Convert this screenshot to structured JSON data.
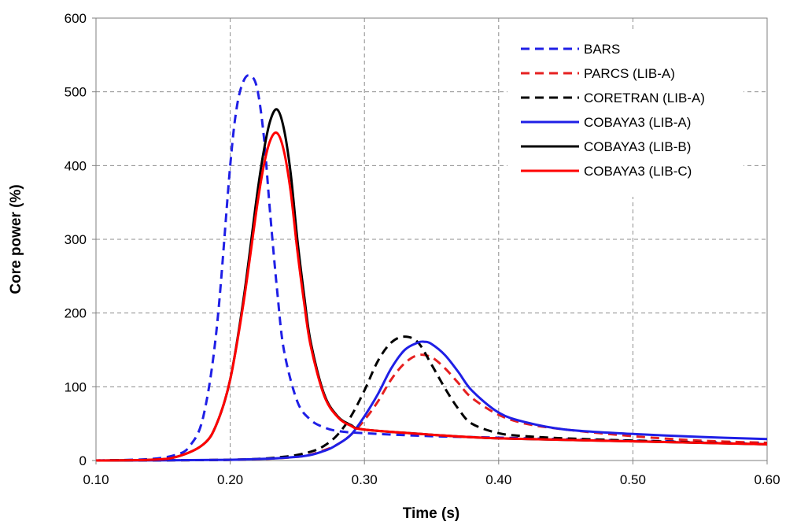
{
  "chart_data": {
    "type": "line",
    "title": "",
    "xlabel": "Time (s)",
    "ylabel": "Core power (%)",
    "xlim": [
      0.1,
      0.6
    ],
    "ylim": [
      0,
      600
    ],
    "xticks": [
      "0.10",
      "0.20",
      "0.30",
      "0.40",
      "0.50",
      "0.60"
    ],
    "yticks": [
      "0",
      "100",
      "200",
      "300",
      "400",
      "500",
      "600"
    ],
    "grid": true,
    "grid_style": "dashed",
    "legend_position": "top-right",
    "series": [
      {
        "name": "BARS",
        "color": "#1f1fe6",
        "dash": "dashed",
        "x": [
          0.1,
          0.14,
          0.16,
          0.17,
          0.18,
          0.19,
          0.2,
          0.205,
          0.21,
          0.215,
          0.22,
          0.225,
          0.23,
          0.235,
          0.24,
          0.25,
          0.26,
          0.27,
          0.28,
          0.3,
          0.35,
          0.4,
          0.5,
          0.6
        ],
        "y": [
          0,
          2,
          8,
          20,
          60,
          180,
          400,
          480,
          515,
          522,
          505,
          440,
          330,
          230,
          150,
          80,
          55,
          45,
          40,
          37,
          33,
          31,
          27,
          24
        ]
      },
      {
        "name": "PARCS (LIB-A)",
        "color": "#e62020",
        "dash": "dashed",
        "x": [
          0.1,
          0.2,
          0.25,
          0.27,
          0.28,
          0.29,
          0.3,
          0.31,
          0.32,
          0.33,
          0.34,
          0.35,
          0.36,
          0.37,
          0.38,
          0.4,
          0.42,
          0.45,
          0.5,
          0.55,
          0.6
        ],
        "y": [
          0,
          1,
          5,
          14,
          22,
          35,
          55,
          80,
          110,
          132,
          143,
          140,
          125,
          105,
          85,
          62,
          50,
          42,
          33,
          27,
          24
        ]
      },
      {
        "name": "CORETRAN (LIB-A)",
        "color": "#000000",
        "dash": "dashed",
        "x": [
          0.1,
          0.2,
          0.24,
          0.26,
          0.27,
          0.28,
          0.29,
          0.3,
          0.31,
          0.32,
          0.33,
          0.34,
          0.35,
          0.36,
          0.37,
          0.38,
          0.4,
          0.42,
          0.45,
          0.5,
          0.6
        ],
        "y": [
          0,
          1,
          5,
          12,
          20,
          35,
          60,
          95,
          135,
          160,
          168,
          160,
          130,
          98,
          70,
          50,
          37,
          33,
          30,
          27,
          22
        ]
      },
      {
        "name": "COBAYA3 (LIB-A)",
        "color": "#1f1fe6",
        "dash": "solid",
        "x": [
          0.1,
          0.2,
          0.25,
          0.27,
          0.28,
          0.29,
          0.3,
          0.31,
          0.32,
          0.33,
          0.34,
          0.345,
          0.35,
          0.36,
          0.37,
          0.38,
          0.4,
          0.42,
          0.45,
          0.5,
          0.55,
          0.6
        ],
        "y": [
          0,
          1,
          5,
          13,
          22,
          35,
          60,
          90,
          125,
          150,
          160,
          161,
          158,
          143,
          120,
          95,
          65,
          52,
          42,
          36,
          32,
          29
        ]
      },
      {
        "name": "COBAYA3 (LIB-B)",
        "color": "#000000",
        "dash": "solid",
        "x": [
          0.1,
          0.14,
          0.16,
          0.18,
          0.19,
          0.2,
          0.21,
          0.22,
          0.225,
          0.23,
          0.235,
          0.24,
          0.245,
          0.25,
          0.255,
          0.26,
          0.27,
          0.28,
          0.29,
          0.3,
          0.35,
          0.4,
          0.5,
          0.6
        ],
        "y": [
          0,
          1,
          5,
          22,
          50,
          110,
          220,
          360,
          420,
          462,
          476,
          450,
          390,
          300,
          225,
          160,
          90,
          60,
          48,
          42,
          35,
          30,
          26,
          22
        ]
      },
      {
        "name": "COBAYA3 (LIB-C)",
        "color": "#ff0000",
        "dash": "solid",
        "x": [
          0.1,
          0.14,
          0.16,
          0.18,
          0.19,
          0.2,
          0.21,
          0.22,
          0.225,
          0.23,
          0.235,
          0.24,
          0.245,
          0.25,
          0.255,
          0.26,
          0.27,
          0.28,
          0.29,
          0.3,
          0.35,
          0.4,
          0.5,
          0.6
        ],
        "y": [
          0,
          1,
          5,
          22,
          50,
          110,
          215,
          345,
          400,
          435,
          444,
          420,
          365,
          285,
          215,
          155,
          88,
          59,
          47,
          42,
          35,
          30,
          26,
          22
        ]
      }
    ]
  }
}
